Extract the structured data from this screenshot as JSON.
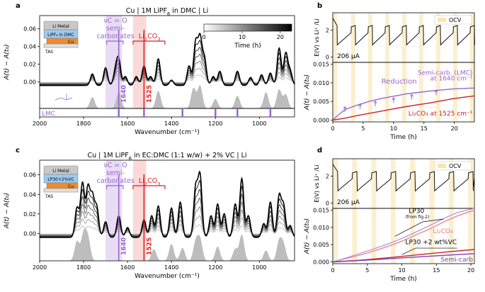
{
  "chart_data": [
    {
      "panel": "a",
      "type": "line",
      "title": "Cu | 1M LiPF6 in DMC | Li",
      "title_main": "Cu | 1M LiPF",
      "title_sub": "6",
      "title_rest": " in DMC | Li",
      "xlabel": "Wavenumber (cm⁻¹)",
      "ylabel": "A(t) − A(t₀)",
      "xlim": [
        2000,
        840
      ],
      "ylim": [
        -0.03,
        0.075
      ],
      "xticks": [
        2000,
        1800,
        1600,
        1400,
        1200,
        1000
      ],
      "yticks": [
        0.0,
        0.02,
        0.04,
        0.06
      ],
      "ytick_labels": [
        "0.00",
        "0.02",
        "0.04",
        "0.06"
      ],
      "peaks_final": [
        [
          1760,
          0.013
        ],
        [
          1700,
          0.02
        ],
        [
          1655,
          0.016
        ],
        [
          1640,
          0.028
        ],
        [
          1610,
          0.01
        ],
        [
          1560,
          0.01
        ],
        [
          1525,
          0.022
        ],
        [
          1495,
          0.01
        ],
        [
          1460,
          0.03
        ],
        [
          1400,
          0.006
        ],
        [
          1320,
          0.022
        ],
        [
          1290,
          0.048
        ],
        [
          1270,
          0.052
        ],
        [
          1250,
          0.03
        ],
        [
          1210,
          0.01
        ],
        [
          1180,
          0.016
        ],
        [
          1100,
          0.016
        ],
        [
          1040,
          0.009
        ],
        [
          990,
          0.012
        ],
        [
          950,
          0.014
        ],
        [
          910,
          0.042
        ],
        [
          880,
          0.036
        ],
        [
          860,
          0.016
        ]
      ],
      "reference_peaks": [
        [
          1760,
          0.018
        ],
        [
          1640,
          0.026
        ],
        [
          1460,
          0.028
        ],
        [
          1300,
          0.032
        ],
        [
          1270,
          0.036
        ],
        [
          1200,
          0.015
        ],
        [
          1100,
          0.02
        ],
        [
          970,
          0.026
        ],
        [
          910,
          0.03
        ],
        [
          880,
          0.022
        ]
      ],
      "reference_label": "LMC",
      "lmc_lines": [
        1640,
        1525,
        1350,
        1200,
        1100,
        950
      ],
      "annotations": {
        "vco": "νC = O",
        "semi1": "semi-",
        "semi2": "carbonates",
        "li2co3_main": "Li",
        "li2co3_sub1": "2",
        "li2co3_mid": "CO",
        "li2co3_sub2": "3",
        "peak1": "1640",
        "peak2": "1525"
      },
      "inset": {
        "line1": "Li Metal",
        "electrolyte": "LiPF₆ in DMC",
        "cu": "Cu",
        "tas": "TAS"
      },
      "colorbar": {
        "label": "Time (h)",
        "range": [
          0,
          23
        ],
        "ticks": [
          0,
          10,
          20
        ]
      }
    },
    {
      "panel": "b",
      "type": "line",
      "upper": {
        "ylabel": "E(V) vs Li⁺ /Li",
        "yticks": [
          0,
          2
        ],
        "ylim": [
          -0.4,
          3.3
        ],
        "current": "206 μA",
        "legend": "OCV",
        "ocv_periods_h": [
          [
            0,
            0.7
          ],
          [
            3,
            3.7
          ],
          [
            5.8,
            6.5
          ],
          [
            8.6,
            9.3
          ],
          [
            11.4,
            12.1
          ],
          [
            14.2,
            14.9
          ],
          [
            17.0,
            17.7
          ],
          [
            19.8,
            20.5
          ],
          [
            22.6,
            23.3
          ]
        ]
      },
      "lower": {
        "xlabel": "Time (h)",
        "ylabel": "A(t) − A(t₀)",
        "xlim": [
          0,
          23.3
        ],
        "ylim": [
          -0.0005,
          0.0155
        ],
        "xticks": [
          0,
          5,
          10,
          15,
          20
        ],
        "yticks": [
          0.0,
          0.005,
          0.01,
          0.015
        ],
        "ytick_labels": [
          "0.000",
          "0.005",
          "0.010",
          "0.015"
        ],
        "series": [
          {
            "name": "Semi-carb. (LMC) at 1640 cm⁻¹",
            "color": "#9966cc",
            "x": [
              0,
              1,
              2,
              4,
              6,
              8,
              10,
              12,
              14,
              16,
              18,
              20,
              23.3
            ],
            "y": [
              0,
              0.0015,
              0.0028,
              0.004,
              0.005,
              0.0058,
              0.0064,
              0.007,
              0.0074,
              0.0078,
              0.0081,
              0.0084,
              0.0086
            ]
          },
          {
            "name": "Li2CO3 at 1525 cm⁻¹",
            "color": "#cc2222",
            "x": [
              0,
              2,
              4,
              6,
              8,
              10,
              12,
              14,
              16,
              18,
              20,
              23.3
            ],
            "y": [
              0,
              0.0005,
              0.0012,
              0.0018,
              0.0024,
              0.003,
              0.0036,
              0.0041,
              0.0046,
              0.0052,
              0.0058,
              0.0065
            ]
          }
        ],
        "annotations": {
          "reduction": "Reduction",
          "semi_label1": "Semi-carb. (LMC)",
          "semi_label2": "at 1640 cm⁻¹",
          "li_label": "Li₂CO₃ at 1525 cm⁻¹"
        }
      }
    },
    {
      "panel": "c",
      "type": "line",
      "title": "Cu | 1M LiPF6 in EC:DMC (1:1 w/w) + 2% VC | Li",
      "title_main": "Cu | 1M LiPF",
      "title_sub": "6",
      "title_rest": " in EC:DMC (1:1 w/w) + 2% VC | Li",
      "xlabel": "Wavenumber (cm⁻¹)",
      "ylabel": "A(t) − A(t₀)",
      "xlim": [
        2000,
        840
      ],
      "ylim": [
        -0.028,
        0.075
      ],
      "xticks": [
        2000,
        1800,
        1600,
        1400,
        1200,
        1000
      ],
      "yticks": [
        0.0,
        0.02,
        0.04,
        0.06
      ],
      "ytick_labels": [
        "0.00",
        "0.02",
        "0.04",
        "0.06"
      ],
      "peaks_final": [
        [
          1830,
          0.03
        ],
        [
          1805,
          0.055
        ],
        [
          1780,
          0.05
        ],
        [
          1760,
          0.04
        ],
        [
          1740,
          0.03
        ],
        [
          1700,
          0.016
        ],
        [
          1640,
          0.022
        ],
        [
          1600,
          0.01
        ],
        [
          1525,
          0.018
        ],
        [
          1490,
          0.022
        ],
        [
          1460,
          0.032
        ],
        [
          1400,
          0.03
        ],
        [
          1360,
          0.036
        ],
        [
          1290,
          0.05
        ],
        [
          1270,
          0.062
        ],
        [
          1220,
          0.022
        ],
        [
          1190,
          0.034
        ],
        [
          1160,
          0.024
        ],
        [
          1110,
          0.034
        ],
        [
          1080,
          0.06
        ],
        [
          1050,
          0.022
        ],
        [
          980,
          0.014
        ],
        [
          950,
          0.036
        ],
        [
          910,
          0.042
        ],
        [
          890,
          0.032
        ],
        [
          860,
          0.012
        ]
      ],
      "reference_peaks": [
        [
          1830,
          0.03
        ],
        [
          1800,
          0.04
        ],
        [
          1780,
          0.034
        ],
        [
          1480,
          0.018
        ],
        [
          1400,
          0.026
        ],
        [
          1350,
          0.02
        ],
        [
          1290,
          0.028
        ],
        [
          1270,
          0.032
        ],
        [
          1190,
          0.022
        ],
        [
          1110,
          0.018
        ],
        [
          1080,
          0.04
        ],
        [
          970,
          0.016
        ],
        [
          910,
          0.03
        ],
        [
          890,
          0.024
        ]
      ],
      "annotations": {
        "vco": "νC = O",
        "semi1": "semi-",
        "semi2": "carbonates",
        "li2co3_main": "Li",
        "li2co3_sub1": "2",
        "li2co3_mid": "CO",
        "li2co3_sub2": "3",
        "peak1": "1640",
        "peak2": "1525"
      },
      "inset": {
        "line1": "Li Metal",
        "electrolyte": "LP30+2%VC",
        "cu": "Cu",
        "tas": "TAS"
      }
    },
    {
      "panel": "d",
      "type": "line",
      "upper": {
        "ylabel": "E(V) vs Li⁺ /Li",
        "yticks": [
          0,
          2
        ],
        "ylim": [
          -0.4,
          3.3
        ],
        "current": "206 μA",
        "legend": "OCV",
        "ocv_periods_h": [
          [
            0,
            0.7
          ],
          [
            2.8,
            3.5
          ],
          [
            5.6,
            6.3
          ],
          [
            8.4,
            9.1
          ],
          [
            11.2,
            11.9
          ],
          [
            14.0,
            14.7
          ],
          [
            16.8,
            17.5
          ],
          [
            19.6,
            20.3
          ]
        ]
      },
      "lower": {
        "xlabel": "Time (h)",
        "ylabel": "A(t) − A(t₀)",
        "xlim": [
          0,
          20.5
        ],
        "ylim": [
          -0.0005,
          0.0155
        ],
        "xticks": [
          0,
          5,
          10,
          15,
          20
        ],
        "yticks": [
          0.0,
          0.005,
          0.01,
          0.015
        ],
        "ytick_labels": [
          "0.000",
          "0.005",
          "0.010",
          "0.015"
        ],
        "series": [
          {
            "name": "LP30 Li2CO3",
            "color": "#ee8888",
            "x": [
              0,
              2,
              4,
              6,
              8,
              10,
              12,
              14,
              16,
              18,
              20.5
            ],
            "y": [
              0,
              0.001,
              0.002,
              0.0032,
              0.0045,
              0.006,
              0.0078,
              0.0095,
              0.0115,
              0.0133,
              0.015
            ]
          },
          {
            "name": "LP30 Semi-carb",
            "color": "#bb99dd",
            "x": [
              0,
              2,
              4,
              6,
              8,
              10,
              12,
              14,
              16,
              18,
              20.5
            ],
            "y": [
              0,
              0.0012,
              0.0025,
              0.0038,
              0.0052,
              0.0068,
              0.0086,
              0.0105,
              0.0125,
              0.0143,
              0.016
            ]
          },
          {
            "name": "LP30 +2 wt%VC Li2CO3",
            "color": "#cc2222",
            "x": [
              0,
              4,
              8,
              12,
              16,
              20.5
            ],
            "y": [
              0,
              0.0005,
              0.0012,
              0.002,
              0.0028,
              0.0036
            ]
          },
          {
            "name": "LP30 +2 wt%VC Semi-carb",
            "color": "#7744bb",
            "x": [
              0,
              4,
              8,
              12,
              16,
              20.5
            ],
            "y": [
              0,
              0.0004,
              0.0009,
              0.0014,
              0.0019,
              0.0024
            ]
          }
        ],
        "annotations": {
          "lp30": "LP30",
          "fromfig": "(from fig.2)",
          "li2co3": "Li₂CO₃",
          "lp30vc": "LP30 +2 wt%VC",
          "semicarb": "Semi-carb"
        }
      }
    }
  ]
}
